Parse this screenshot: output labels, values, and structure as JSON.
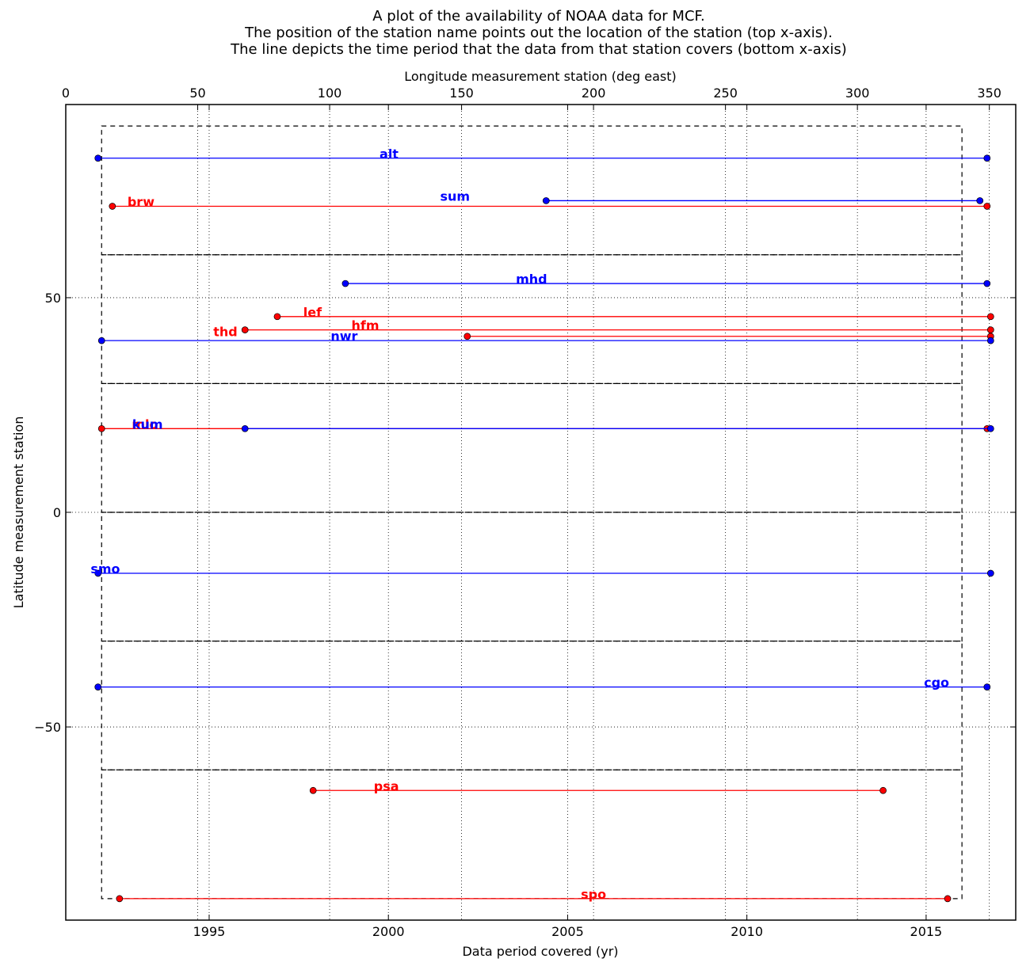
{
  "chart_data": {
    "type": "line",
    "title_lines": [
      "A plot of the availability of NOAA data for MCF.",
      "The position of the station name points out the location of the station (top x-axis).",
      "The line depicts the time period that the data from that station covers (bottom x-axis)"
    ],
    "xlabel": "Data period covered (yr)",
    "ylabel": "Latitude measurement station",
    "x2label": "Longitude measurement station (deg east)",
    "xlim": [
      1991,
      2017.5
    ],
    "ylim": [
      -95,
      95
    ],
    "x2lim": [
      0,
      360
    ],
    "xticks": [
      1995,
      2000,
      2005,
      2010,
      2015
    ],
    "yticks": [
      -50,
      0,
      50
    ],
    "x2ticks": [
      0,
      50,
      100,
      150,
      200,
      250,
      300,
      350
    ],
    "ytick_labels": [
      "−50",
      "0",
      "50"
    ],
    "grid": true,
    "colors": {
      "blue": "#0000ff",
      "red": "#ff0000"
    },
    "dashed_boxes": [
      {
        "x": [
          1992,
          2016
        ],
        "y": [
          60,
          90
        ]
      },
      {
        "x": [
          1992,
          2016
        ],
        "y": [
          30,
          60
        ]
      },
      {
        "x": [
          1992,
          2016
        ],
        "y": [
          0,
          30
        ]
      },
      {
        "x": [
          1992,
          2016
        ],
        "y": [
          -30,
          0
        ]
      },
      {
        "x": [
          1992,
          2016
        ],
        "y": [
          -60,
          -30
        ]
      },
      {
        "x": [
          1992,
          2016
        ],
        "y": [
          -90,
          -60
        ]
      }
    ],
    "series": [
      {
        "name": "alt",
        "color": "blue",
        "lat": 82.5,
        "lon": 122.5,
        "start": 1991.9,
        "end": 2016.7
      },
      {
        "name": "sum",
        "color": "blue",
        "lat": 72.6,
        "lon": 147.5,
        "start": 2004.4,
        "end": 2016.5
      },
      {
        "name": "brw",
        "color": "red",
        "lat": 71.3,
        "lon": 28.5,
        "start": 1992.3,
        "end": 2016.7
      },
      {
        "name": "mhd",
        "color": "blue",
        "lat": 53.3,
        "lon": 176.5,
        "start": 1998.8,
        "end": 2016.7
      },
      {
        "name": "lef",
        "color": "red",
        "lat": 45.6,
        "lon": 93.5,
        "start": 1996.9,
        "end": 2016.8
      },
      {
        "name": "hfm",
        "color": "red",
        "lat": 42.5,
        "lon": 113.5,
        "start": 1996.0,
        "end": 2016.8
      },
      {
        "name": "thd",
        "color": "red",
        "lat": 41.0,
        "lon": 60.5,
        "start": 2002.2,
        "end": 2016.8
      },
      {
        "name": "nwr",
        "color": "blue",
        "lat": 40.0,
        "lon": 105.5,
        "start": 1992.0,
        "end": 2016.8
      },
      {
        "name": "mlo",
        "color": "red",
        "lat": 19.5,
        "lon": 30.0,
        "start": 1992.0,
        "end": 2016.7
      },
      {
        "name": "kum",
        "color": "blue",
        "lat": 19.5,
        "lon": 31.0,
        "start": 1996.0,
        "end": 2016.8
      },
      {
        "name": "smo",
        "color": "blue",
        "lat": -14.2,
        "lon": 15.0,
        "start": 1991.9,
        "end": 2016.8
      },
      {
        "name": "cgo",
        "color": "blue",
        "lat": -40.7,
        "lon": 330.0,
        "start": 1991.9,
        "end": 2016.7
      },
      {
        "name": "psa",
        "color": "red",
        "lat": -64.8,
        "lon": 121.5,
        "start": 1997.9,
        "end": 2013.8
      },
      {
        "name": "spo",
        "color": "red",
        "lat": -90.0,
        "lon": 200.0,
        "start": 1992.5,
        "end": 2015.6
      }
    ]
  }
}
